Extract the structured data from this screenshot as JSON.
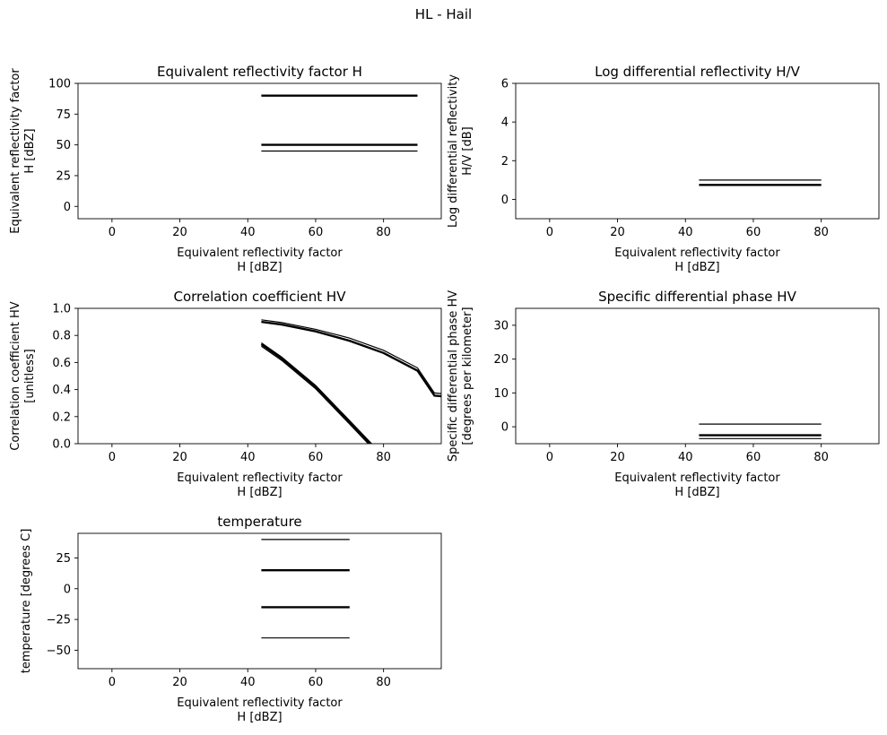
{
  "figure": {
    "title": "HL - Hail"
  },
  "chart_data": [
    {
      "id": "zh",
      "type": "line",
      "title": "Equivalent reflectivity factor H",
      "xlabel": [
        "Equivalent reflectivity factor",
        "H [dBZ]"
      ],
      "ylabel": [
        "Equivalent reflectivity factor",
        "H [dBZ]"
      ],
      "xlim": [
        -10,
        97
      ],
      "ylim": [
        -10,
        100
      ],
      "xticks": [
        0,
        20,
        40,
        60,
        80
      ],
      "yticks": [
        0,
        25,
        50,
        75,
        100
      ],
      "grid": false,
      "series": [
        {
          "x": [
            44,
            90
          ],
          "y": [
            90,
            90
          ],
          "weight": "bold"
        },
        {
          "x": [
            44,
            90
          ],
          "y": [
            50,
            50
          ],
          "weight": "bold"
        },
        {
          "x": [
            44,
            90
          ],
          "y": [
            45,
            45
          ],
          "weight": "thin"
        }
      ]
    },
    {
      "id": "zdr",
      "type": "line",
      "title": "Log differential reflectivity H/V",
      "xlabel": [
        "Equivalent reflectivity factor",
        "H [dBZ]"
      ],
      "ylabel": [
        "Log differential reflectivity",
        "H/V [dB]"
      ],
      "xlim": [
        -10,
        97
      ],
      "ylim": [
        -1,
        6
      ],
      "xticks": [
        0,
        20,
        40,
        60,
        80
      ],
      "yticks": [
        0,
        2,
        4,
        6
      ],
      "grid": false,
      "series": [
        {
          "x": [
            44,
            80
          ],
          "y": [
            1.0,
            1.0
          ],
          "weight": "thin"
        },
        {
          "x": [
            44,
            80
          ],
          "y": [
            0.75,
            0.75
          ],
          "weight": "bold"
        }
      ]
    },
    {
      "id": "rhohv",
      "type": "line",
      "title": "Correlation coefficient HV",
      "xlabel": [
        "Equivalent reflectivity factor",
        "H [dBZ]"
      ],
      "ylabel": [
        "Correlation coefficient HV",
        "[unitless]"
      ],
      "xlim": [
        -10,
        97
      ],
      "ylim": [
        0,
        1
      ],
      "xticks": [
        0,
        20,
        40,
        60,
        80
      ],
      "yticks": [
        0.0,
        0.2,
        0.4,
        0.6,
        0.8,
        1.0
      ],
      "ytick_decimals": 1,
      "grid": false,
      "series": [
        {
          "x": [
            44,
            50,
            60,
            70,
            80,
            90,
            95,
            97
          ],
          "y": [
            0.915,
            0.895,
            0.845,
            0.78,
            0.69,
            0.56,
            0.375,
            0.37
          ],
          "weight": "thin"
        },
        {
          "x": [
            44,
            50,
            60,
            70,
            80,
            90,
            95,
            97
          ],
          "y": [
            0.9,
            0.88,
            0.83,
            0.76,
            0.67,
            0.54,
            0.355,
            0.35
          ],
          "weight": "bold"
        },
        {
          "x": [
            44,
            50,
            60,
            70,
            76.5
          ],
          "y": [
            0.745,
            0.64,
            0.43,
            0.17,
            0.0
          ],
          "weight": "thin"
        },
        {
          "x": [
            44,
            50,
            60,
            70,
            76
          ],
          "y": [
            0.735,
            0.63,
            0.42,
            0.16,
            0.0
          ],
          "weight": "bold"
        },
        {
          "x": [
            44,
            50,
            60,
            70,
            75.5
          ],
          "y": [
            0.72,
            0.615,
            0.405,
            0.145,
            0.0
          ],
          "weight": "thin"
        }
      ]
    },
    {
      "id": "kdp",
      "type": "line",
      "title": "Specific differential phase HV",
      "xlabel": [
        "Equivalent reflectivity factor",
        "H [dBZ]"
      ],
      "ylabel": [
        "Specific differential phase HV",
        "[degrees per kilometer]"
      ],
      "xlim": [
        -10,
        97
      ],
      "ylim": [
        -5,
        35
      ],
      "xticks": [
        0,
        20,
        40,
        60,
        80
      ],
      "yticks": [
        0,
        10,
        20,
        30
      ],
      "grid": false,
      "series": [
        {
          "x": [
            44,
            80
          ],
          "y": [
            0.8,
            0.8
          ],
          "weight": "thin"
        },
        {
          "x": [
            44,
            80
          ],
          "y": [
            -2.5,
            -2.5
          ],
          "weight": "bold"
        },
        {
          "x": [
            44,
            80
          ],
          "y": [
            -3.5,
            -3.5
          ],
          "weight": "thin"
        }
      ]
    },
    {
      "id": "temp",
      "type": "line",
      "title": "temperature",
      "xlabel": [
        "Equivalent reflectivity factor",
        "H [dBZ]"
      ],
      "ylabel": [
        "temperature [degrees C]"
      ],
      "xlim": [
        -10,
        97
      ],
      "ylim": [
        -65,
        45
      ],
      "xticks": [
        0,
        20,
        40,
        60,
        80
      ],
      "yticks": [
        -50,
        -25,
        0,
        25
      ],
      "grid": false,
      "series": [
        {
          "x": [
            44,
            70
          ],
          "y": [
            40,
            40
          ],
          "weight": "thin"
        },
        {
          "x": [
            44,
            70
          ],
          "y": [
            15,
            15
          ],
          "weight": "bold"
        },
        {
          "x": [
            44,
            70
          ],
          "y": [
            -15,
            -15
          ],
          "weight": "bold"
        },
        {
          "x": [
            44,
            70
          ],
          "y": [
            -40,
            -40
          ],
          "weight": "thin"
        }
      ]
    }
  ]
}
